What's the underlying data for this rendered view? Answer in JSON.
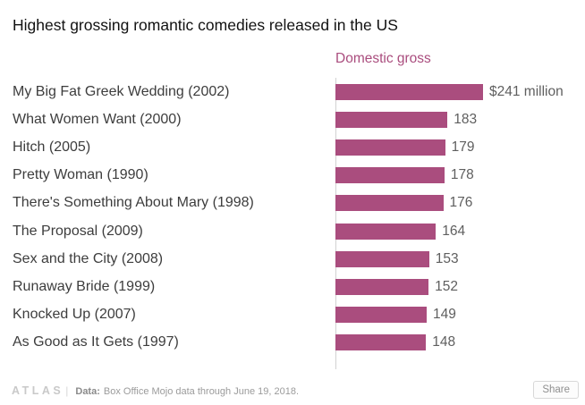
{
  "title": "Highest grossing romantic comedies released in the US",
  "chart_data": {
    "type": "bar",
    "orientation": "horizontal",
    "value_header": "Domestic gross",
    "categories": [
      "My Big Fat Greek Wedding (2002)",
      "What Women Want (2000)",
      "Hitch (2005)",
      "Pretty Woman (1990)",
      "There's Something About Mary (1998)",
      "The Proposal (2009)",
      "Sex and the City (2008)",
      "Runaway Bride (1999)",
      "Knocked Up (2007)",
      "As Good as It Gets (1997)"
    ],
    "values": [
      241,
      183,
      179,
      178,
      176,
      164,
      153,
      152,
      149,
      148
    ],
    "value_labels": [
      "$241 million",
      "183",
      "179",
      "178",
      "176",
      "164",
      "153",
      "152",
      "149",
      "148"
    ],
    "xlim": [
      0,
      241
    ],
    "units": "millions USD",
    "grid": "single-baseline",
    "legend": "none"
  },
  "colors": {
    "bar": "#aa4d7e",
    "value_header": "#aa4d7e",
    "axis_line": "#d2d2d2",
    "label_text": "#3d3d3d",
    "value_text": "#5f5f5f"
  },
  "footer": {
    "logo": "ATLAS",
    "separator": "|",
    "source_label": "Data:",
    "source_text": "Box Office Mojo data through June 19, 2018.",
    "share_label": "Share"
  }
}
